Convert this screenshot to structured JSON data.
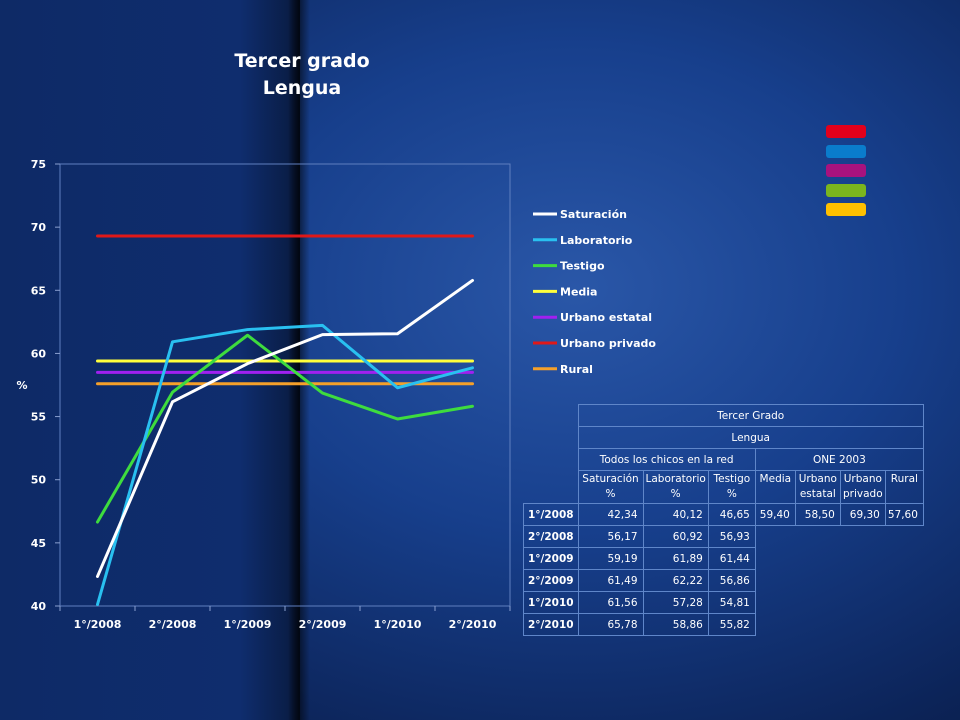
{
  "chart_data": {
    "type": "line",
    "title": [
      "Tercer grado",
      "Lengua"
    ],
    "ylabel": "%",
    "xlabel": "",
    "categories": [
      "1°/2008",
      "2°/2008",
      "1°/2009",
      "2°/2009",
      "1°/2010",
      "2°/2010"
    ],
    "ylim": [
      40,
      75
    ],
    "yticks": [
      40,
      45,
      50,
      55,
      60,
      65,
      70,
      75
    ],
    "grid": false,
    "legend_position": "right",
    "series": [
      {
        "name": "Saturación",
        "color": "#ffffff",
        "values": [
          42.34,
          56.17,
          59.19,
          61.49,
          61.56,
          65.78
        ]
      },
      {
        "name": "Laboratorio",
        "color": "#29c0f0",
        "values": [
          40.12,
          60.92,
          61.89,
          62.22,
          57.28,
          58.86
        ]
      },
      {
        "name": "Testigo",
        "color": "#3edc3e",
        "values": [
          46.65,
          56.93,
          61.44,
          56.86,
          54.81,
          55.82
        ]
      },
      {
        "name": "Media",
        "color": "#ffff3c",
        "values": [
          59.4,
          59.4,
          59.4,
          59.4,
          59.4,
          59.4
        ]
      },
      {
        "name": "Urbano estatal",
        "color": "#a020f0",
        "values": [
          58.5,
          58.5,
          58.5,
          58.5,
          58.5,
          58.5
        ]
      },
      {
        "name": "Urbano privado",
        "color": "#e01818",
        "values": [
          69.3,
          69.3,
          69.3,
          69.3,
          69.3,
          69.3
        ]
      },
      {
        "name": "Rural",
        "color": "#f5a02a",
        "values": [
          57.6,
          57.6,
          57.6,
          57.6,
          57.6,
          57.6
        ]
      }
    ]
  },
  "swatches": [
    "#e3001b",
    "#0a7ccc",
    "#a8127e",
    "#7bb51e",
    "#ffc000"
  ],
  "table": {
    "title": "Tercer Grado",
    "subtitle": "Lengua",
    "group1": "Todos los chicos en la red",
    "group2": "ONE 2003",
    "col_saturacion": "Saturación %",
    "col_laboratorio": "Laboratorio %",
    "col_testigo": "Testigo %",
    "col_media": "Media",
    "col_urbano_estatal": "Urbano estatal",
    "col_urbano_privado": "Urbano privado",
    "col_rural": "Rural",
    "rows": [
      {
        "period": "1°/2008",
        "saturacion": "42,34",
        "laboratorio": "40,12",
        "testigo": "46,65",
        "media": "59,40",
        "urbano_estatal": "58,50",
        "urbano_privado": "69,30",
        "rural": "57,60"
      },
      {
        "period": "2°/2008",
        "saturacion": "56,17",
        "laboratorio": "60,92",
        "testigo": "56,93"
      },
      {
        "period": "1°/2009",
        "saturacion": "59,19",
        "laboratorio": "61,89",
        "testigo": "61,44"
      },
      {
        "period": "2°/2009",
        "saturacion": "61,49",
        "laboratorio": "62,22",
        "testigo": "56,86"
      },
      {
        "period": "1°/2010",
        "saturacion": "61,56",
        "laboratorio": "57,28",
        "testigo": "54,81"
      },
      {
        "period": "2°/2010",
        "saturacion": "65,78",
        "laboratorio": "58,86",
        "testigo": "55,82"
      }
    ]
  }
}
